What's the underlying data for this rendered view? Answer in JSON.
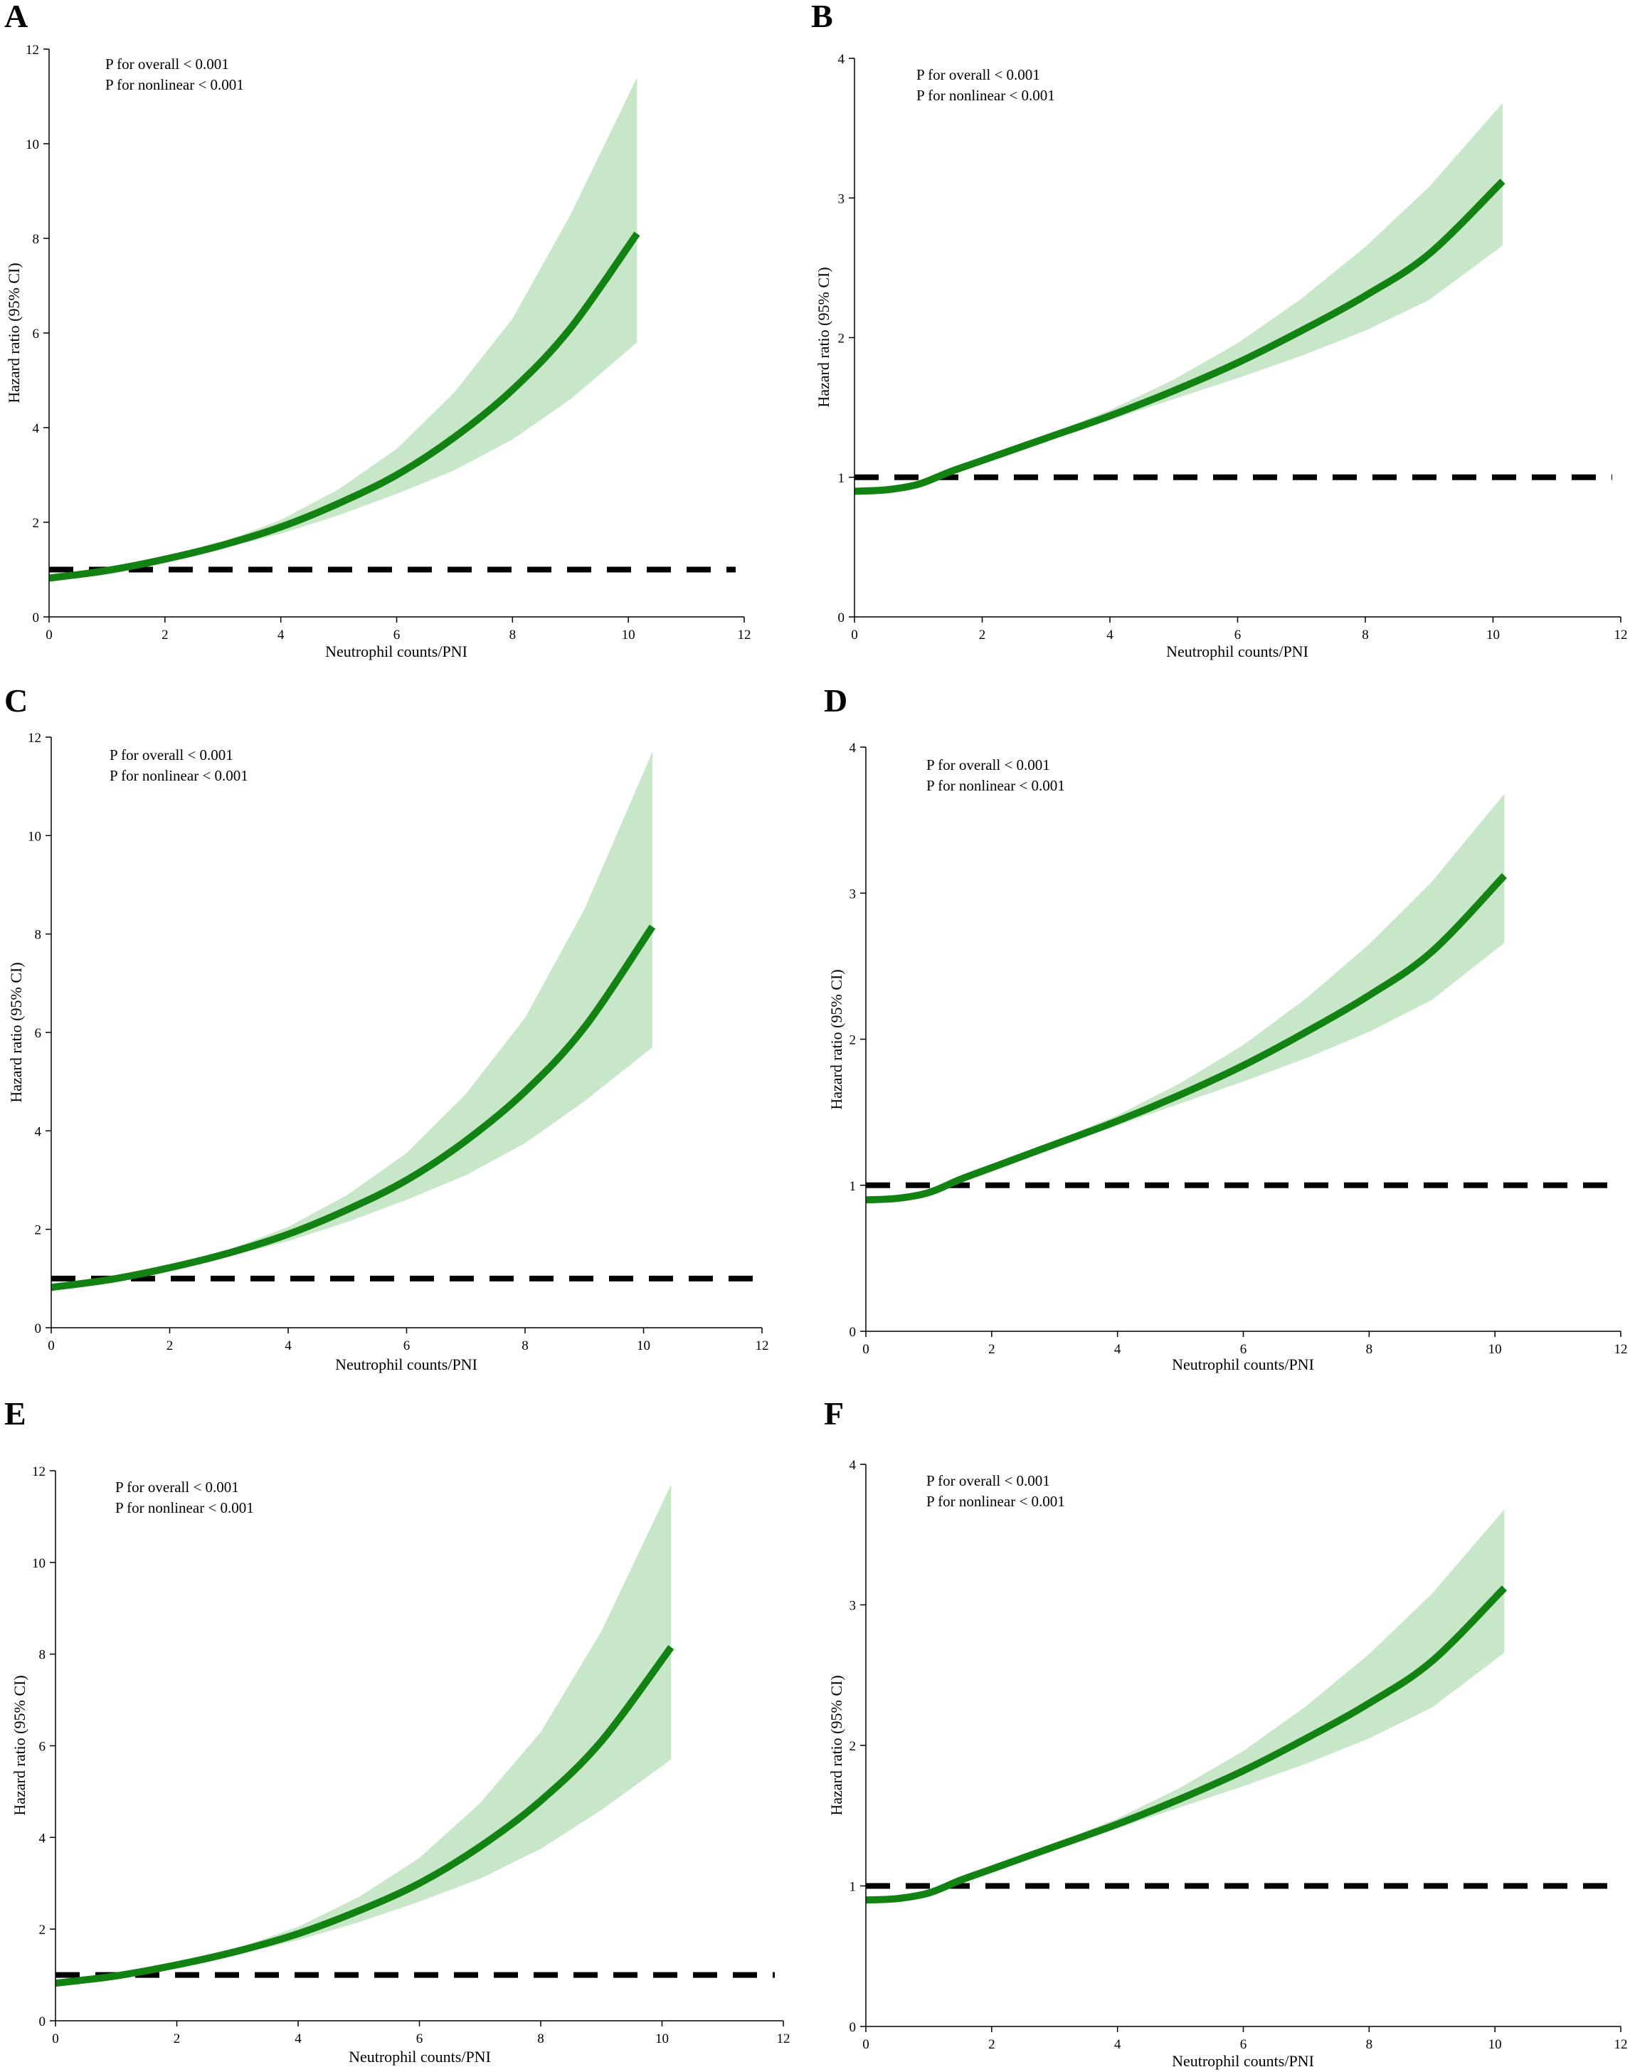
{
  "figure": {
    "colors": {
      "curve": "#128212",
      "band": "#c8e6c8",
      "reference": "#000000"
    },
    "chart_data": [
      {
        "panel": "A",
        "type": "line",
        "xlabel": "Neutrophil counts/PNI",
        "ylabel": "Hazard ratio (95% CI)",
        "xlim": [
          0,
          12
        ],
        "ylim": [
          0,
          12
        ],
        "xticks": [
          "0",
          "2",
          "4",
          "6",
          "8",
          "10",
          "12"
        ],
        "yticks": [
          "0",
          "2",
          "4",
          "6",
          "8",
          "10",
          "12"
        ],
        "annotations": [
          "P for overall < 0.001",
          "P for nonlinear < 0.001"
        ],
        "reference_line": 1,
        "series": [
          {
            "name": "Hazard ratio",
            "x": [
              0,
              1,
              2,
              3,
              4,
              5,
              6,
              7,
              8,
              9,
              10.15
            ],
            "y": [
              0.82,
              0.98,
              1.22,
              1.52,
              1.9,
              2.4,
              3.0,
              3.8,
              4.8,
              6.1,
              8.1
            ]
          },
          {
            "name": "95% CI upper",
            "x": [
              0,
              1,
              2,
              3,
              4,
              5,
              6,
              7,
              8,
              9,
              10.15
            ],
            "y": [
              0.86,
              1.0,
              1.25,
              1.58,
              2.05,
              2.7,
              3.55,
              4.75,
              6.3,
              8.5,
              11.4
            ]
          },
          {
            "name": "95% CI lower",
            "x": [
              0,
              1,
              2,
              3,
              4,
              5,
              6,
              7,
              8,
              9,
              10.15
            ],
            "y": [
              0.78,
              0.96,
              1.18,
              1.45,
              1.76,
              2.15,
              2.6,
              3.1,
              3.75,
              4.6,
              5.8
            ]
          }
        ]
      },
      {
        "panel": "B",
        "type": "line",
        "xlabel": "Neutrophil counts/PNI",
        "ylabel": "Hazard ratio (95% CI)",
        "xlim": [
          0,
          12
        ],
        "ylim": [
          0,
          4
        ],
        "xticks": [
          "0",
          "2",
          "4",
          "6",
          "8",
          "10",
          "12"
        ],
        "yticks": [
          "0",
          "1",
          "2",
          "3",
          "4"
        ],
        "annotations": [
          "P for overall < 0.001",
          "P for nonlinear < 0.001"
        ],
        "reference_line": 1,
        "series": [
          {
            "name": "Hazard ratio",
            "x": [
              0,
              0.5,
              1,
              1.5,
              2,
              3,
              4,
              5,
              6,
              7,
              8,
              9,
              10.15
            ],
            "y": [
              0.9,
              0.91,
              0.95,
              1.04,
              1.12,
              1.28,
              1.44,
              1.62,
              1.82,
              2.05,
              2.3,
              2.6,
              3.12
            ]
          },
          {
            "name": "95% CI upper",
            "x": [
              0,
              0.5,
              1,
              1.5,
              2,
              3,
              4,
              5,
              6,
              7,
              8,
              9,
              10.15
            ],
            "y": [
              0.92,
              0.93,
              0.97,
              1.06,
              1.14,
              1.3,
              1.48,
              1.7,
              1.96,
              2.28,
              2.65,
              3.08,
              3.68
            ]
          },
          {
            "name": "95% CI lower",
            "x": [
              0,
              0.5,
              1,
              1.5,
              2,
              3,
              4,
              5,
              6,
              7,
              8,
              9,
              10.15
            ],
            "y": [
              0.88,
              0.89,
              0.93,
              1.02,
              1.1,
              1.26,
              1.41,
              1.56,
              1.71,
              1.87,
              2.05,
              2.27,
              2.66
            ]
          }
        ]
      },
      {
        "panel": "C",
        "type": "line",
        "xlabel": "Neutrophil counts/PNI",
        "ylabel": "Hazard ratio (95% CI)",
        "xlim": [
          0,
          12
        ],
        "ylim": [
          0,
          12
        ],
        "xticks": [
          "0",
          "2",
          "4",
          "6",
          "8",
          "10",
          "12"
        ],
        "yticks": [
          "0",
          "2",
          "4",
          "6",
          "8",
          "10",
          "12"
        ],
        "annotations": [
          "P for overall < 0.001",
          "P for nonlinear < 0.001"
        ],
        "reference_line": 1,
        "series": [
          {
            "name": "Hazard ratio",
            "x": [
              0,
              1,
              2,
              3,
              4,
              5,
              6,
              7,
              8,
              9,
              10.15
            ],
            "y": [
              0.82,
              0.98,
              1.22,
              1.52,
              1.9,
              2.4,
              3.0,
              3.8,
              4.8,
              6.1,
              8.15
            ]
          },
          {
            "name": "95% CI upper",
            "x": [
              0,
              1,
              2,
              3,
              4,
              5,
              6,
              7,
              8,
              9,
              10.15
            ],
            "y": [
              0.86,
              1.0,
              1.25,
              1.58,
              2.05,
              2.7,
              3.55,
              4.75,
              6.3,
              8.5,
              11.7
            ]
          },
          {
            "name": "95% CI lower",
            "x": [
              0,
              1,
              2,
              3,
              4,
              5,
              6,
              7,
              8,
              9,
              10.15
            ],
            "y": [
              0.78,
              0.96,
              1.18,
              1.45,
              1.76,
              2.15,
              2.6,
              3.1,
              3.75,
              4.6,
              5.7
            ]
          }
        ]
      },
      {
        "panel": "D",
        "type": "line",
        "xlabel": "Neutrophil counts/PNI",
        "ylabel": "Hazard ratio (95% CI)",
        "xlim": [
          0,
          12
        ],
        "ylim": [
          0,
          4
        ],
        "xticks": [
          "0",
          "2",
          "4",
          "6",
          "8",
          "10",
          "12"
        ],
        "yticks": [
          "0",
          "1",
          "2",
          "3",
          "4"
        ],
        "annotations": [
          "P for overall < 0.001",
          "P for nonlinear < 0.001"
        ],
        "reference_line": 1,
        "series": [
          {
            "name": "Hazard ratio",
            "x": [
              0,
              0.5,
              1,
              1.5,
              2,
              3,
              4,
              5,
              6,
              7,
              8,
              9,
              10.15
            ],
            "y": [
              0.9,
              0.91,
              0.95,
              1.04,
              1.12,
              1.28,
              1.44,
              1.62,
              1.82,
              2.05,
              2.3,
              2.6,
              3.12
            ]
          },
          {
            "name": "95% CI upper",
            "x": [
              0,
              0.5,
              1,
              1.5,
              2,
              3,
              4,
              5,
              6,
              7,
              8,
              9,
              10.15
            ],
            "y": [
              0.92,
              0.93,
              0.97,
              1.06,
              1.14,
              1.3,
              1.48,
              1.7,
              1.96,
              2.28,
              2.65,
              3.08,
              3.68
            ]
          },
          {
            "name": "95% CI lower",
            "x": [
              0,
              0.5,
              1,
              1.5,
              2,
              3,
              4,
              5,
              6,
              7,
              8,
              9,
              10.15
            ],
            "y": [
              0.88,
              0.89,
              0.93,
              1.02,
              1.1,
              1.26,
              1.41,
              1.56,
              1.71,
              1.87,
              2.05,
              2.27,
              2.66
            ]
          }
        ]
      },
      {
        "panel": "E",
        "type": "line",
        "xlabel": "Neutrophil counts/PNI",
        "ylabel": "Hazard ratio (95% CI)",
        "xlim": [
          0,
          12
        ],
        "ylim": [
          0,
          12
        ],
        "xticks": [
          "0",
          "2",
          "4",
          "6",
          "8",
          "10",
          "12"
        ],
        "yticks": [
          "0",
          "2",
          "4",
          "6",
          "8",
          "10",
          "12"
        ],
        "annotations": [
          "P for overall < 0.001",
          "P for nonlinear < 0.001"
        ],
        "reference_line": 1,
        "series": [
          {
            "name": "Hazard ratio",
            "x": [
              0,
              1,
              2,
              3,
              4,
              5,
              6,
              7,
              8,
              9,
              10.15
            ],
            "y": [
              0.82,
              0.98,
              1.22,
              1.52,
              1.9,
              2.4,
              3.0,
              3.8,
              4.8,
              6.1,
              8.15
            ]
          },
          {
            "name": "95% CI upper",
            "x": [
              0,
              1,
              2,
              3,
              4,
              5,
              6,
              7,
              8,
              9,
              10.15
            ],
            "y": [
              0.86,
              1.0,
              1.25,
              1.58,
              2.05,
              2.7,
              3.55,
              4.75,
              6.3,
              8.5,
              11.7
            ]
          },
          {
            "name": "95% CI lower",
            "x": [
              0,
              1,
              2,
              3,
              4,
              5,
              6,
              7,
              8,
              9,
              10.15
            ],
            "y": [
              0.78,
              0.96,
              1.18,
              1.45,
              1.76,
              2.15,
              2.6,
              3.1,
              3.75,
              4.6,
              5.7
            ]
          }
        ]
      },
      {
        "panel": "F",
        "type": "line",
        "xlabel": "Neutrophil counts/PNI",
        "ylabel": "Hazard ratio (95% CI)",
        "xlim": [
          0,
          12
        ],
        "ylim": [
          0,
          4
        ],
        "xticks": [
          "0",
          "2",
          "4",
          "6",
          "8",
          "10",
          "12"
        ],
        "yticks": [
          "0",
          "1",
          "2",
          "3",
          "4"
        ],
        "annotations": [
          "P for overall < 0.001",
          "P for nonlinear < 0.001"
        ],
        "reference_line": 1,
        "series": [
          {
            "name": "Hazard ratio",
            "x": [
              0,
              0.5,
              1,
              1.5,
              2,
              3,
              4,
              5,
              6,
              7,
              8,
              9,
              10.15
            ],
            "y": [
              0.9,
              0.91,
              0.95,
              1.04,
              1.12,
              1.28,
              1.44,
              1.62,
              1.82,
              2.05,
              2.3,
              2.6,
              3.12
            ]
          },
          {
            "name": "95% CI upper",
            "x": [
              0,
              0.5,
              1,
              1.5,
              2,
              3,
              4,
              5,
              6,
              7,
              8,
              9,
              10.15
            ],
            "y": [
              0.92,
              0.93,
              0.97,
              1.06,
              1.14,
              1.3,
              1.48,
              1.7,
              1.96,
              2.28,
              2.65,
              3.08,
              3.68
            ]
          },
          {
            "name": "95% CI lower",
            "x": [
              0,
              0.5,
              1,
              1.5,
              2,
              3,
              4,
              5,
              6,
              7,
              8,
              9,
              10.15
            ],
            "y": [
              0.88,
              0.89,
              0.93,
              1.02,
              1.1,
              1.26,
              1.41,
              1.56,
              1.71,
              1.87,
              2.05,
              2.27,
              2.66
            ]
          }
        ]
      }
    ]
  }
}
